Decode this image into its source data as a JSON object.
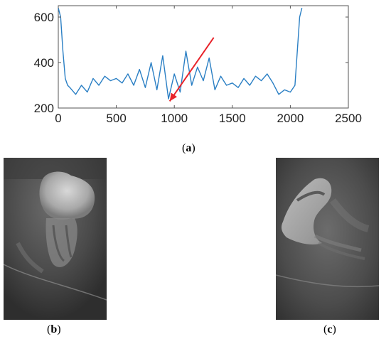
{
  "chart_data": {
    "type": "line",
    "xlim": [
      0,
      2500
    ],
    "ylim": [
      200,
      650
    ],
    "xticks": [
      0,
      500,
      1000,
      1500,
      2000,
      2500
    ],
    "yticks": [
      200,
      400,
      600
    ],
    "grid": false,
    "series_color": "#2a7fc4",
    "annotation_color": "#e8242b",
    "annotation": {
      "type": "arrow",
      "points_to": [
        960,
        230
      ],
      "from": [
        1340,
        510
      ]
    },
    "series": [
      {
        "x": [
          0,
          20,
          40,
          60,
          80,
          100,
          150,
          200,
          250,
          300,
          350,
          400,
          450,
          500,
          550,
          600,
          650,
          700,
          750,
          800,
          850,
          900,
          950,
          1000,
          1050,
          1100,
          1150,
          1200,
          1250,
          1300,
          1350,
          1400,
          1450,
          1500,
          1550,
          1600,
          1650,
          1700,
          1750,
          1800,
          1850,
          1900,
          1950,
          2000,
          2040,
          2060,
          2080,
          2100
        ],
        "y": [
          640,
          600,
          450,
          330,
          300,
          290,
          260,
          300,
          270,
          330,
          300,
          340,
          320,
          330,
          310,
          350,
          300,
          370,
          290,
          400,
          280,
          430,
          240,
          350,
          270,
          450,
          300,
          380,
          320,
          420,
          280,
          340,
          300,
          310,
          290,
          330,
          300,
          340,
          320,
          350,
          310,
          260,
          280,
          270,
          300,
          450,
          600,
          640
        ]
      }
    ]
  },
  "captions": {
    "a": "a",
    "b": "b",
    "c": "c"
  }
}
